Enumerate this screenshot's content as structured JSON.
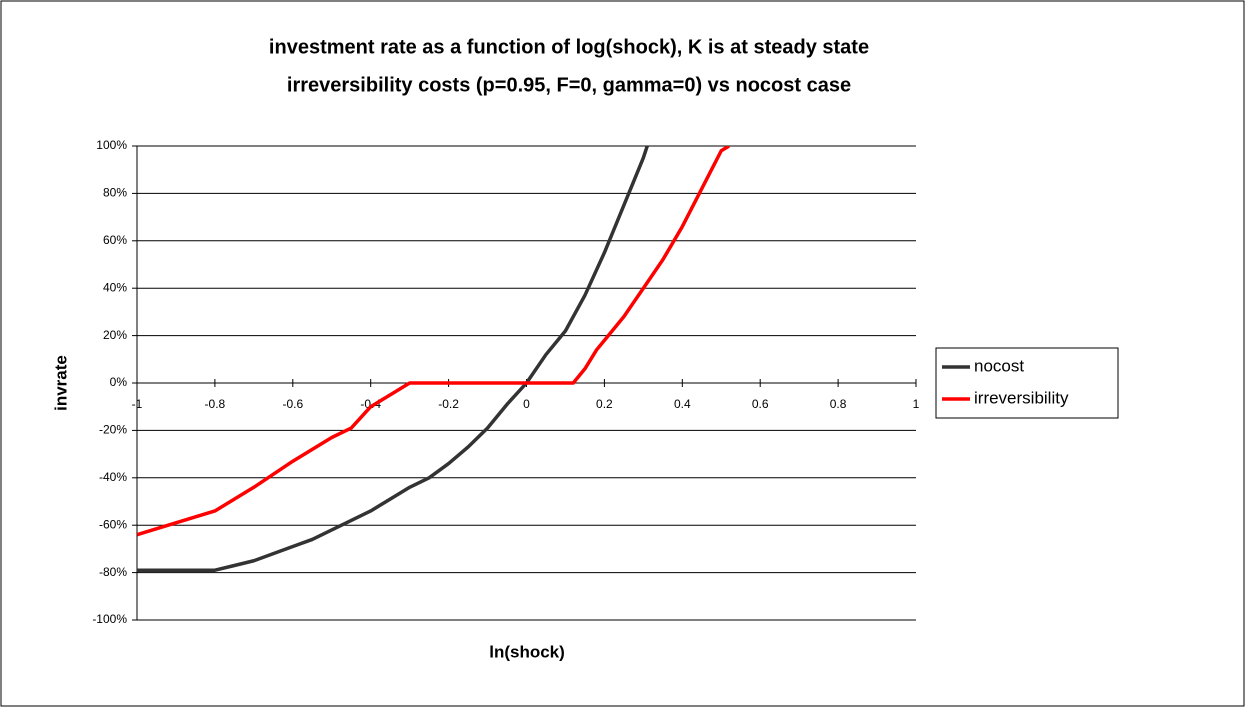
{
  "chart_data": {
    "type": "line",
    "title": "investment rate as a function of log(shock), K is at steady state",
    "subtitle": "irreversibility costs (p=0.95, F=0, gamma=0) vs nocost case",
    "x_label": "ln(shock)",
    "y_label": "invrate",
    "xlim": [
      -1,
      1
    ],
    "xticks": [
      -1,
      -0.8,
      -0.6,
      -0.4,
      -0.2,
      0,
      0.2,
      0.4,
      0.6,
      0.8,
      1
    ],
    "ylim": [
      -100,
      100
    ],
    "yticks": [
      {
        "value": -100,
        "label": "-100%"
      },
      {
        "value": -80,
        "label": "-80%"
      },
      {
        "value": -60,
        "label": "-60%"
      },
      {
        "value": -40,
        "label": "-40%"
      },
      {
        "value": -20,
        "label": "-20%"
      },
      {
        "value": 0,
        "label": "0%"
      },
      {
        "value": 20,
        "label": "20%"
      },
      {
        "value": 40,
        "label": "40%"
      },
      {
        "value": 60,
        "label": "60%"
      },
      {
        "value": 80,
        "label": "80%"
      },
      {
        "value": 100,
        "label": "100%"
      }
    ],
    "grid": true,
    "legend": "right",
    "series": [
      {
        "name": "nocost",
        "color": "#333333",
        "x": [
          -1,
          -0.9,
          -0.8,
          -0.75,
          -0.7,
          -0.65,
          -0.6,
          -0.55,
          -0.5,
          -0.45,
          -0.4,
          -0.35,
          -0.3,
          -0.25,
          -0.2,
          -0.15,
          -0.1,
          -0.05,
          0,
          0.05,
          0.1,
          0.15,
          0.2,
          0.25,
          0.3,
          0.31
        ],
        "values": [
          -79,
          -79,
          -79,
          -77,
          -75,
          -72,
          -69,
          -66,
          -62,
          -58,
          -54,
          -49,
          -44,
          -40,
          -34,
          -27,
          -19,
          -9,
          0,
          12,
          22,
          37,
          55,
          75,
          95,
          100
        ]
      },
      {
        "name": "irreversibility",
        "color": "#ff0000",
        "x": [
          -1,
          -0.9,
          -0.8,
          -0.7,
          -0.6,
          -0.5,
          -0.45,
          -0.4,
          -0.35,
          -0.3,
          0,
          0.12,
          0.15,
          0.18,
          0.2,
          0.25,
          0.3,
          0.35,
          0.4,
          0.45,
          0.5,
          0.52
        ],
        "values": [
          -64,
          -59,
          -54,
          -44,
          -33,
          -23,
          -19,
          -10,
          -5,
          0,
          0,
          0,
          6,
          14,
          18,
          28,
          40,
          52,
          66,
          82,
          98,
          100
        ]
      }
    ]
  }
}
